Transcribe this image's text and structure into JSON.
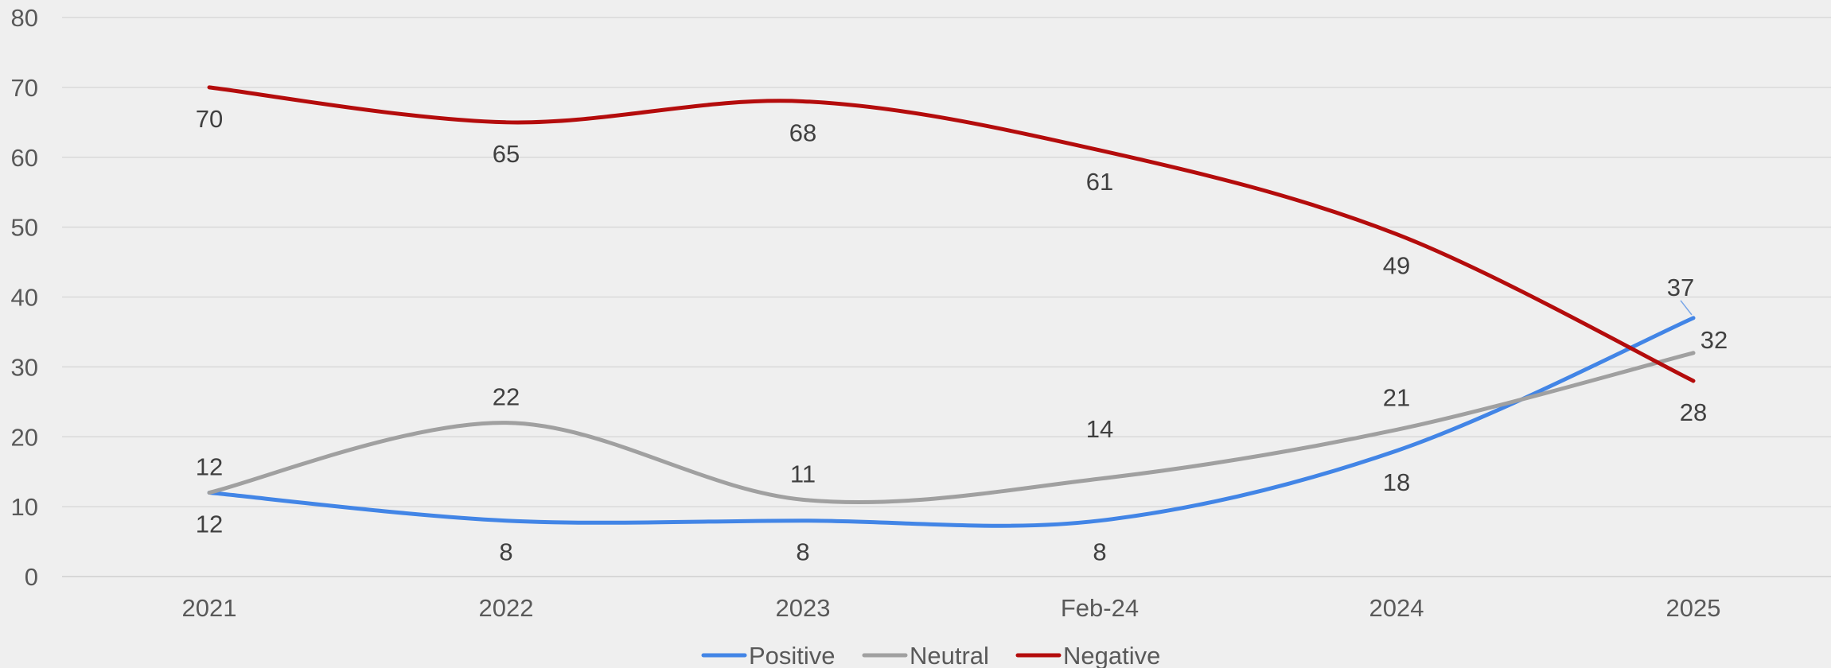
{
  "chart_data": {
    "type": "line",
    "categories": [
      "2021",
      "2022",
      "2023",
      "Feb-24",
      "2024",
      "2025"
    ],
    "series": [
      {
        "name": "Positive",
        "values": [
          12,
          8,
          8,
          8,
          18,
          37
        ],
        "color": "#4285e6"
      },
      {
        "name": "Neutral",
        "values": [
          12,
          22,
          11,
          14,
          21,
          32
        ],
        "color": "#a0a0a0"
      },
      {
        "name": "Negative",
        "values": [
          70,
          65,
          68,
          61,
          49,
          28
        ],
        "color": "#b40c0c"
      }
    ],
    "y_ticks": [
      "0",
      "10",
      "20",
      "30",
      "40",
      "50",
      "60",
      "70",
      "80"
    ],
    "ylim": [
      0,
      80
    ],
    "grid": true,
    "smooth": true,
    "legend": "bottom-center"
  }
}
